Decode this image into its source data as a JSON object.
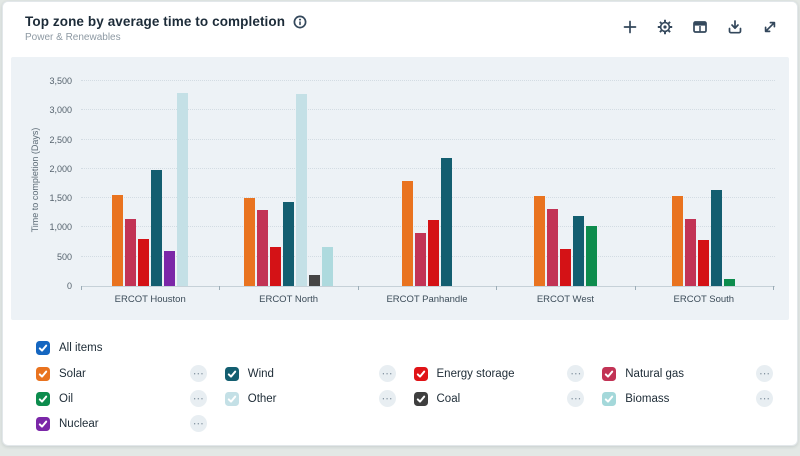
{
  "header": {
    "title": "Top zone by average time to completion",
    "subtitle": "Power & Renewables"
  },
  "toolbar": {
    "icons": [
      {
        "name": "add-icon"
      },
      {
        "name": "settings-gear-icon"
      },
      {
        "name": "data-table-icon"
      },
      {
        "name": "download-icon"
      },
      {
        "name": "expand-icon"
      }
    ]
  },
  "chart_data": {
    "type": "bar",
    "title": "Top zone by average time to completion",
    "xlabel": "",
    "ylabel": "Time to completion (Days)",
    "ylim": [
      0,
      3500
    ],
    "ytick_step": 500,
    "ytick_labels": [
      "0",
      "500",
      "1,000",
      "1,500",
      "2,000",
      "2,500",
      "3,000",
      "3,500"
    ],
    "grid": "horizontal-dotted",
    "legend_position": "bottom",
    "categories": [
      "ERCOT Houston",
      "ERCOT North",
      "ERCOT Panhandle",
      "ERCOT West",
      "ERCOT South"
    ],
    "series": [
      {
        "name": "Solar",
        "color": "#e9731f",
        "values": [
          1550,
          1510,
          1790,
          1530,
          1530
        ]
      },
      {
        "name": "Natural gas",
        "color": "#c23355",
        "values": [
          1140,
          1290,
          900,
          1310,
          1140
        ]
      },
      {
        "name": "Energy storage",
        "color": "#d41216",
        "values": [
          810,
          670,
          1120,
          640,
          780
        ]
      },
      {
        "name": "Wind",
        "color": "#135e70",
        "values": [
          1980,
          1430,
          2190,
          1190,
          1640
        ]
      },
      {
        "name": "Oil",
        "color": "#0d8c4d",
        "values": [
          null,
          null,
          null,
          1030,
          120
        ]
      },
      {
        "name": "Nuclear",
        "color": "#7b27a8",
        "values": [
          590,
          null,
          null,
          null,
          null
        ]
      },
      {
        "name": "Other",
        "color": "#c4e0e6",
        "values": [
          3290,
          3270,
          null,
          null,
          null
        ]
      },
      {
        "name": "Coal",
        "color": "#454545",
        "values": [
          null,
          190,
          null,
          null,
          null
        ]
      },
      {
        "name": "Biomass",
        "color": "#aedade",
        "values": [
          null,
          660,
          null,
          null,
          null
        ]
      }
    ]
  },
  "legend": {
    "all_items": {
      "label": "All items",
      "color": "#1566c0",
      "checked": true
    },
    "menu_glyph": "⋯",
    "items": [
      {
        "label": "Solar",
        "color": "#e9731f",
        "checked": true
      },
      {
        "label": "Wind",
        "color": "#135e70",
        "checked": true
      },
      {
        "label": "Energy storage",
        "color": "#e01317",
        "checked": true
      },
      {
        "label": "Natural gas",
        "color": "#c23355",
        "checked": true
      },
      {
        "label": "Oil",
        "color": "#0d8c4d",
        "checked": true
      },
      {
        "label": "Other",
        "color": "#c4e0e6",
        "checked": true
      },
      {
        "label": "Coal",
        "color": "#3f3f3f",
        "checked": true
      },
      {
        "label": "Biomass",
        "color": "#a4d8da",
        "checked": true
      },
      {
        "label": "Nuclear",
        "color": "#7b27a8",
        "checked": true
      }
    ]
  }
}
